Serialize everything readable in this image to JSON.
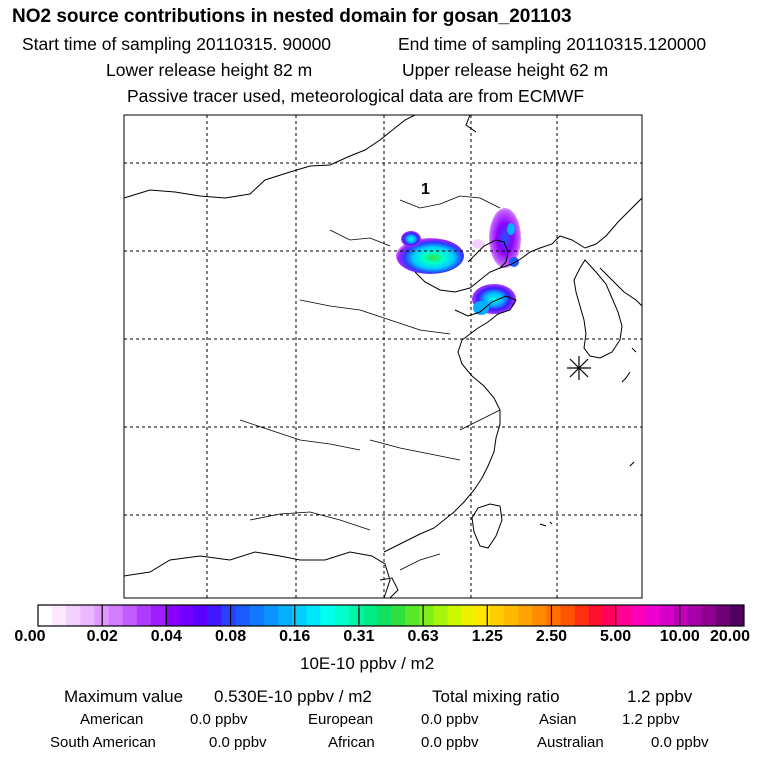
{
  "header": {
    "title": "NO2 source contributions in nested domain for gosan_201103",
    "start_label": "Start time of sampling 20110315. 90000",
    "end_label": "End time of sampling 20110315.120000",
    "lower_label": "Lower release height   82 m",
    "upper_label": "Upper release height   62 m",
    "note": "Passive tracer used, meteorological data are from ECMWF"
  },
  "map": {
    "region_label": "1",
    "release_marker": "gosan-station-asterisk"
  },
  "colorbar": {
    "ticks": [
      "0.00",
      "0.02",
      "0.04",
      "0.08",
      "0.16",
      "0.31",
      "0.63",
      "1.25",
      "2.50",
      "5.00",
      "10.00",
      "20.00"
    ],
    "units": "10E-10 ppbv / m2",
    "colors": [
      "#ffffff",
      "#f9e8ff",
      "#f2d0ff",
      "#ebb8ff",
      "#e099ff",
      "#d27cff",
      "#c25cff",
      "#b03cff",
      "#9d1fff",
      "#8a00ff",
      "#7300ff",
      "#5a00ff",
      "#4018ff",
      "#2a40ff",
      "#1a5cff",
      "#1278ff",
      "#0a94ff",
      "#06b0ff",
      "#03ccff",
      "#00e6ff",
      "#00ffee",
      "#00ffcc",
      "#00f5a8",
      "#00ec84",
      "#10e060",
      "#30e040",
      "#58e82a",
      "#80ee18",
      "#a8f40a",
      "#ccf800",
      "#eef200",
      "#ffe600",
      "#ffd000",
      "#ffba00",
      "#ffa400",
      "#ff8c00",
      "#ff7000",
      "#ff5400",
      "#ff3010",
      "#ff1030",
      "#ff0060",
      "#ff0090",
      "#ff00b8",
      "#f000d0",
      "#d800c8",
      "#c000b8",
      "#a800a8",
      "#900090",
      "#700078",
      "#500060"
    ]
  },
  "summary": {
    "max_label": "Maximum value",
    "max_value": "0.530E-10 ppbv / m2",
    "total_label": "Total mixing ratio",
    "total_value": "1.2 ppbv",
    "regions": [
      {
        "name": "American",
        "value": "0.0 ppbv"
      },
      {
        "name": "European",
        "value": "0.0 ppbv"
      },
      {
        "name": "Asian",
        "value": "1.2 ppbv"
      },
      {
        "name": "South American",
        "value": "0.0 ppbv"
      },
      {
        "name": "African",
        "value": "0.0 ppbv"
      },
      {
        "name": "Australian",
        "value": "0.0 ppbv"
      }
    ]
  }
}
